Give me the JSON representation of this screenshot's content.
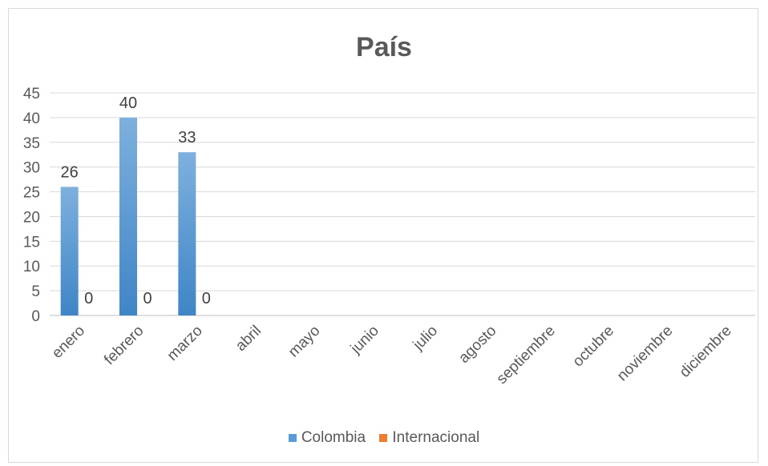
{
  "chart_data": {
    "type": "bar",
    "title": "País",
    "categories": [
      "enero",
      "febrero",
      "marzo",
      "abril",
      "mayo",
      "junio",
      "julio",
      "agosto",
      "septiembre",
      "octubre",
      "noviembre",
      "diciembre"
    ],
    "series": [
      {
        "name": "Colombia",
        "color": "#5b9bd5",
        "values": [
          26,
          40,
          33,
          null,
          null,
          null,
          null,
          null,
          null,
          null,
          null,
          null
        ]
      },
      {
        "name": "Internacional",
        "color": "#ed7d31",
        "values": [
          0,
          0,
          0,
          null,
          null,
          null,
          null,
          null,
          null,
          null,
          null,
          null
        ]
      }
    ],
    "ylim": [
      0,
      45
    ],
    "yticks": [
      0,
      5,
      10,
      15,
      20,
      25,
      30,
      35,
      40,
      45
    ],
    "grid": true,
    "legend": "bottom"
  }
}
